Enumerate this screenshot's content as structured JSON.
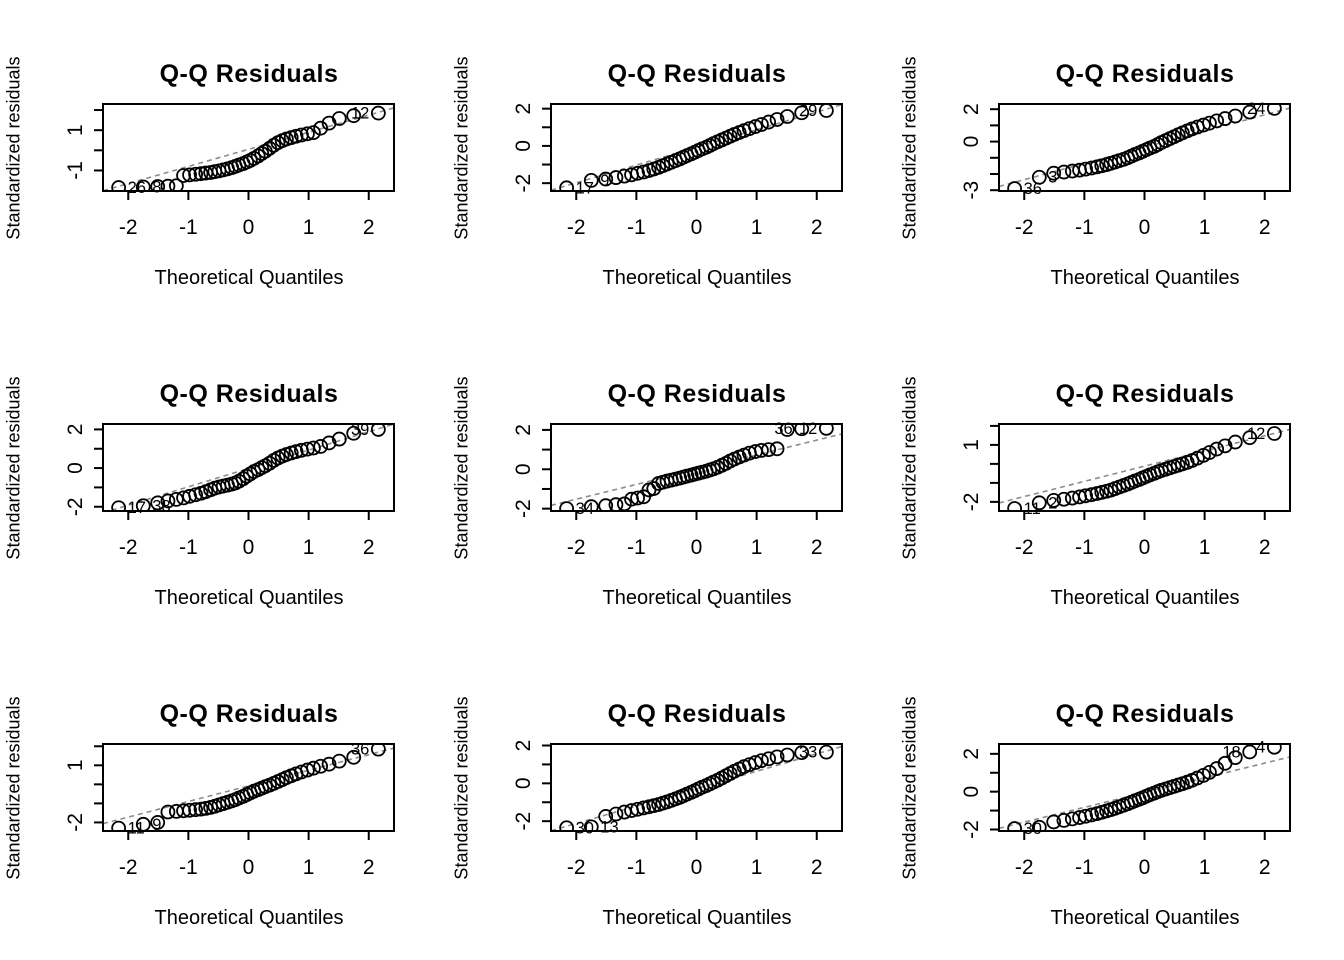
{
  "shared": {
    "title": "Q-Q Residuals",
    "xlabel": "Theoretical Quantiles",
    "ylabel": "Standardized residuals",
    "point_color": "#000000",
    "refline_color": "#8c8c8c",
    "x_tick_labels": [
      "-2",
      "-1",
      "0",
      "1",
      "2"
    ],
    "x_tick_values": [
      -2,
      -1,
      0,
      1,
      2
    ],
    "xlim": [
      -2.42,
      2.42
    ]
  },
  "chart_data": {
    "type": "scatter",
    "subtype": "qq-normal",
    "grid": "off",
    "title": "Q-Q Residuals",
    "xlabel": "Theoretical Quantiles",
    "ylabel": "Standardized residuals",
    "theoretical_quantiles": [
      -2.16,
      -1.75,
      -1.51,
      -1.34,
      -1.2,
      -1.08,
      -0.98,
      -0.88,
      -0.79,
      -0.71,
      -0.63,
      -0.56,
      -0.49,
      -0.42,
      -0.35,
      -0.28,
      -0.22,
      -0.16,
      -0.09,
      -0.03,
      0.03,
      0.09,
      0.16,
      0.22,
      0.28,
      0.35,
      0.42,
      0.49,
      0.56,
      0.63,
      0.71,
      0.79,
      0.88,
      0.98,
      1.08,
      1.2,
      1.34,
      1.51,
      1.75,
      2.16
    ],
    "panels": [
      {
        "row": 0,
        "col": 0,
        "ylim": [
          -2.02,
          2.3
        ],
        "y_ticks": [
          {
            "v": 2,
            "t": ""
          },
          {
            "v": 1,
            "t": "1"
          },
          {
            "v": 0,
            "t": ""
          },
          {
            "v": -1,
            "t": "-1"
          }
        ],
        "ref": {
          "m": 0.85,
          "b": 0.05
        },
        "y": [
          -1.85,
          -1.82,
          -1.8,
          -1.78,
          -1.76,
          -1.25,
          -1.22,
          -1.19,
          -1.16,
          -1.13,
          -1.1,
          -1.06,
          -1.02,
          -0.97,
          -0.92,
          -0.86,
          -0.8,
          -0.73,
          -0.66,
          -0.58,
          -0.5,
          -0.4,
          -0.28,
          -0.16,
          -0.05,
          0.1,
          0.25,
          0.38,
          0.48,
          0.56,
          0.63,
          0.7,
          0.76,
          0.82,
          0.88,
          1.1,
          1.35,
          1.58,
          1.72,
          1.85
        ],
        "labels": [
          {
            "t": "26",
            "x": -2.16,
            "y": -1.85,
            "side": "r"
          },
          {
            "t": "8",
            "x": -1.75,
            "y": -1.82,
            "side": "r"
          },
          {
            "t": "12",
            "x": 2.16,
            "y": 1.85,
            "side": "l"
          }
        ]
      },
      {
        "row": 0,
        "col": 1,
        "ylim": [
          -2.42,
          2.25
        ],
        "y_ticks": [
          {
            "v": 2,
            "t": "2"
          },
          {
            "v": 1,
            "t": ""
          },
          {
            "v": 0,
            "t": "0"
          },
          {
            "v": -1,
            "t": ""
          },
          {
            "v": -2,
            "t": "-2"
          }
        ],
        "ref": {
          "m": 0.95,
          "b": -0.08
        },
        "y": [
          -2.25,
          -1.85,
          -1.78,
          -1.7,
          -1.62,
          -1.55,
          -1.47,
          -1.4,
          -1.32,
          -1.24,
          -1.15,
          -1.06,
          -0.97,
          -0.88,
          -0.79,
          -0.7,
          -0.61,
          -0.52,
          -0.43,
          -0.34,
          -0.25,
          -0.16,
          -0.07,
          0.02,
          0.12,
          0.22,
          0.32,
          0.42,
          0.52,
          0.62,
          0.72,
          0.82,
          0.93,
          1.04,
          1.15,
          1.28,
          1.42,
          1.58,
          1.78,
          1.9
        ],
        "labels": [
          {
            "t": "17",
            "x": -2.16,
            "y": -2.25,
            "side": "r"
          },
          {
            "t": "9",
            "x": -1.75,
            "y": -1.85,
            "side": "r"
          },
          {
            "t": "29",
            "x": 2.16,
            "y": 1.9,
            "side": "l"
          }
        ]
      },
      {
        "row": 0,
        "col": 2,
        "ylim": [
          -3.05,
          2.32
        ],
        "y_ticks": [
          {
            "v": 2,
            "t": "2"
          },
          {
            "v": 1,
            "t": ""
          },
          {
            "v": 0,
            "t": "0"
          },
          {
            "v": -1,
            "t": ""
          },
          {
            "v": -2,
            "t": ""
          },
          {
            "v": -3,
            "t": "-3"
          }
        ],
        "ref": {
          "m": 1.0,
          "b": -0.35
        },
        "y": [
          -2.9,
          -2.2,
          -1.95,
          -1.88,
          -1.82,
          -1.76,
          -1.7,
          -1.63,
          -1.56,
          -1.49,
          -1.42,
          -1.34,
          -1.26,
          -1.18,
          -1.1,
          -1.0,
          -0.9,
          -0.8,
          -0.7,
          -0.6,
          -0.5,
          -0.4,
          -0.3,
          -0.18,
          -0.06,
          0.06,
          0.18,
          0.3,
          0.42,
          0.54,
          0.66,
          0.78,
          0.9,
          1.02,
          1.14,
          1.28,
          1.42,
          1.58,
          1.82,
          2.05
        ],
        "labels": [
          {
            "t": "36",
            "x": -2.16,
            "y": -2.9,
            "side": "r"
          },
          {
            "t": "3",
            "x": -1.75,
            "y": -2.2,
            "side": "r"
          },
          {
            "t": "24",
            "x": 2.16,
            "y": 2.05,
            "side": "l"
          }
        ]
      },
      {
        "row": 1,
        "col": 0,
        "ylim": [
          -2.22,
          2.28
        ],
        "y_ticks": [
          {
            "v": 2,
            "t": "2"
          },
          {
            "v": 1,
            "t": ""
          },
          {
            "v": 0,
            "t": "0"
          },
          {
            "v": -1,
            "t": ""
          },
          {
            "v": -2,
            "t": "-2"
          }
        ],
        "ref": {
          "m": 0.95,
          "b": -0.02
        },
        "y": [
          -2.05,
          -1.95,
          -1.8,
          -1.7,
          -1.62,
          -1.54,
          -1.46,
          -1.38,
          -1.3,
          -1.22,
          -1.12,
          -1.04,
          -0.98,
          -0.93,
          -0.88,
          -0.83,
          -0.77,
          -0.68,
          -0.55,
          -0.42,
          -0.3,
          -0.18,
          -0.08,
          0.02,
          0.12,
          0.25,
          0.4,
          0.52,
          0.62,
          0.7,
          0.78,
          0.85,
          0.92,
          0.98,
          1.04,
          1.12,
          1.3,
          1.5,
          1.8,
          2.0
        ],
        "labels": [
          {
            "t": "17",
            "x": -2.16,
            "y": -2.05,
            "side": "r"
          },
          {
            "t": "38",
            "x": -1.75,
            "y": -1.95,
            "side": "r"
          },
          {
            "t": "39",
            "x": 2.16,
            "y": 2.0,
            "side": "l"
          }
        ]
      },
      {
        "row": 1,
        "col": 1,
        "ylim": [
          -2.12,
          2.3
        ],
        "y_ticks": [
          {
            "v": 2,
            "t": "2"
          },
          {
            "v": 1,
            "t": ""
          },
          {
            "v": 0,
            "t": "0"
          },
          {
            "v": -1,
            "t": ""
          },
          {
            "v": -2,
            "t": "-2"
          }
        ],
        "ref": {
          "m": 0.75,
          "b": -0.02
        },
        "y": [
          -2.0,
          -1.9,
          -1.85,
          -1.8,
          -1.76,
          -1.52,
          -1.46,
          -1.4,
          -1.05,
          -0.98,
          -0.72,
          -0.66,
          -0.6,
          -0.55,
          -0.5,
          -0.45,
          -0.4,
          -0.35,
          -0.3,
          -0.25,
          -0.2,
          -0.15,
          -0.1,
          -0.04,
          0.02,
          0.1,
          0.2,
          0.3,
          0.42,
          0.52,
          0.62,
          0.72,
          0.82,
          0.9,
          0.96,
          1.0,
          1.04,
          2.02,
          2.06,
          2.08
        ],
        "labels": [
          {
            "t": "34",
            "x": -2.16,
            "y": -2.0,
            "side": "r"
          },
          {
            "t": "36",
            "x": 1.75,
            "y": 2.06,
            "side": "l"
          },
          {
            "t": "12",
            "x": 2.16,
            "y": 2.08,
            "side": "l"
          }
        ]
      },
      {
        "row": 1,
        "col": 2,
        "ylim": [
          -2.48,
          2.1
        ],
        "y_ticks": [
          {
            "v": 2,
            "t": ""
          },
          {
            "v": 1,
            "t": "1"
          },
          {
            "v": 0,
            "t": ""
          },
          {
            "v": -1,
            "t": ""
          },
          {
            "v": -2,
            "t": "-2"
          }
        ],
        "ref": {
          "m": 0.8,
          "b": -0.12
        },
        "y": [
          -2.35,
          -2.05,
          -1.92,
          -1.86,
          -1.8,
          -1.74,
          -1.68,
          -1.62,
          -1.56,
          -1.5,
          -1.44,
          -1.38,
          -1.3,
          -1.22,
          -1.14,
          -1.06,
          -0.98,
          -0.9,
          -0.82,
          -0.74,
          -0.66,
          -0.58,
          -0.5,
          -0.42,
          -0.35,
          -0.28,
          -0.21,
          -0.14,
          -0.07,
          0.0,
          0.08,
          0.18,
          0.3,
          0.45,
          0.6,
          0.78,
          0.95,
          1.15,
          1.38,
          1.6
        ],
        "labels": [
          {
            "t": "11",
            "x": -2.16,
            "y": -2.35,
            "side": "r"
          },
          {
            "t": "2",
            "x": -1.75,
            "y": -2.05,
            "side": "r"
          },
          {
            "t": "12",
            "x": 2.16,
            "y": 1.6,
            "side": "l"
          }
        ]
      },
      {
        "row": 2,
        "col": 0,
        "ylim": [
          -2.45,
          2.12
        ],
        "y_ticks": [
          {
            "v": 2,
            "t": ""
          },
          {
            "v": 1,
            "t": "1"
          },
          {
            "v": 0,
            "t": ""
          },
          {
            "v": -1,
            "t": ""
          },
          {
            "v": -2,
            "t": "-2"
          }
        ],
        "ref": {
          "m": 0.82,
          "b": -0.08
        },
        "y": [
          -2.3,
          -2.1,
          -2.0,
          -1.45,
          -1.42,
          -1.39,
          -1.36,
          -1.33,
          -1.3,
          -1.26,
          -1.21,
          -1.15,
          -1.08,
          -1.01,
          -0.94,
          -0.87,
          -0.8,
          -0.72,
          -0.63,
          -0.54,
          -0.45,
          -0.36,
          -0.28,
          -0.2,
          -0.12,
          -0.04,
          0.05,
          0.15,
          0.25,
          0.35,
          0.45,
          0.55,
          0.65,
          0.75,
          0.85,
          0.95,
          1.06,
          1.22,
          1.42,
          1.85
        ],
        "labels": [
          {
            "t": "11",
            "x": -2.16,
            "y": -2.3,
            "side": "r"
          },
          {
            "t": "9",
            "x": -1.75,
            "y": -2.1,
            "side": "r"
          },
          {
            "t": "36",
            "x": 2.16,
            "y": 1.85,
            "side": "l"
          }
        ]
      },
      {
        "row": 2,
        "col": 1,
        "ylim": [
          -2.52,
          2.08
        ],
        "y_ticks": [
          {
            "v": 2,
            "t": "2"
          },
          {
            "v": 1,
            "t": ""
          },
          {
            "v": 0,
            "t": "0"
          },
          {
            "v": -1,
            "t": ""
          },
          {
            "v": -2,
            "t": "-2"
          }
        ],
        "ref": {
          "m": 0.92,
          "b": -0.28
        },
        "y": [
          -2.35,
          -2.3,
          -1.75,
          -1.62,
          -1.52,
          -1.44,
          -1.37,
          -1.3,
          -1.24,
          -1.18,
          -1.12,
          -1.05,
          -0.98,
          -0.9,
          -0.82,
          -0.74,
          -0.66,
          -0.57,
          -0.48,
          -0.39,
          -0.3,
          -0.21,
          -0.12,
          -0.03,
          0.06,
          0.16,
          0.28,
          0.4,
          0.52,
          0.64,
          0.76,
          0.88,
          0.99,
          1.1,
          1.2,
          1.3,
          1.4,
          1.5,
          1.62,
          1.65
        ],
        "labels": [
          {
            "t": "30",
            "x": -2.16,
            "y": -2.35,
            "side": "r"
          },
          {
            "t": "13",
            "x": -1.75,
            "y": -2.3,
            "side": "r"
          },
          {
            "t": "33",
            "x": 2.16,
            "y": 1.65,
            "side": "l"
          }
        ]
      },
      {
        "row": 2,
        "col": 2,
        "ylim": [
          -2.08,
          2.52
        ],
        "y_ticks": [
          {
            "v": 2,
            "t": "2"
          },
          {
            "v": 1,
            "t": ""
          },
          {
            "v": 0,
            "t": "0"
          },
          {
            "v": -1,
            "t": ""
          },
          {
            "v": -2,
            "t": "-2"
          }
        ],
        "ref": {
          "m": 0.78,
          "b": -0.05
        },
        "y": [
          -1.95,
          -1.88,
          -1.6,
          -1.52,
          -1.44,
          -1.37,
          -1.3,
          -1.23,
          -1.16,
          -1.09,
          -1.02,
          -0.95,
          -0.88,
          -0.8,
          -0.72,
          -0.64,
          -0.56,
          -0.48,
          -0.4,
          -0.32,
          -0.24,
          -0.16,
          -0.08,
          0.0,
          0.07,
          0.14,
          0.21,
          0.28,
          0.35,
          0.42,
          0.5,
          0.6,
          0.72,
          0.86,
          1.02,
          1.22,
          1.5,
          1.8,
          2.1,
          2.35
        ],
        "labels": [
          {
            "t": "30",
            "x": -2.16,
            "y": -1.95,
            "side": "r"
          },
          {
            "t": "18",
            "x": 1.75,
            "y": 2.1,
            "side": "l"
          },
          {
            "t": "4",
            "x": 2.16,
            "y": 2.35,
            "side": "l"
          }
        ]
      }
    ]
  }
}
